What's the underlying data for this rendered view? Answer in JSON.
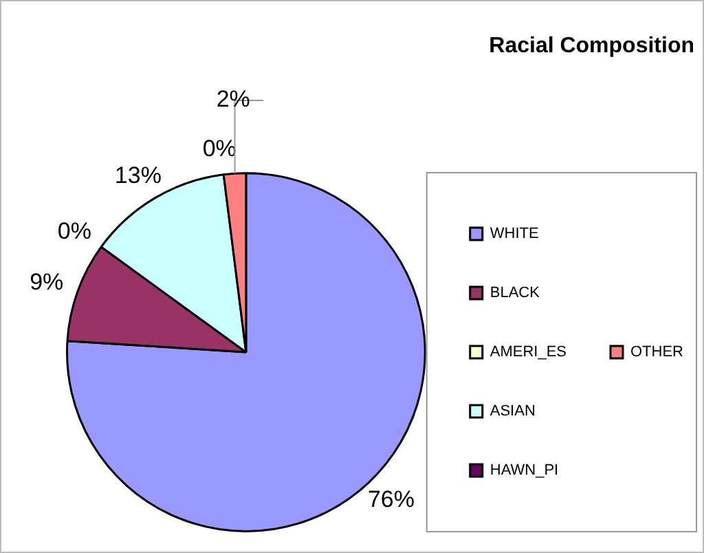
{
  "chart_data": {
    "type": "pie",
    "title": "Racial Composition",
    "categories": [
      "WHITE",
      "BLACK",
      "AMERI_ES",
      "ASIAN",
      "HAWN_PI",
      "OTHER"
    ],
    "values": [
      76,
      9,
      0,
      13,
      0,
      2
    ],
    "value_labels": [
      "76%",
      "9%",
      "0%",
      "13%",
      "0%",
      "2%"
    ],
    "colors": [
      "#9999ff",
      "#993366",
      "#ffffcc",
      "#ccffff",
      "#660066",
      "#ff8080"
    ],
    "legend": "right"
  }
}
